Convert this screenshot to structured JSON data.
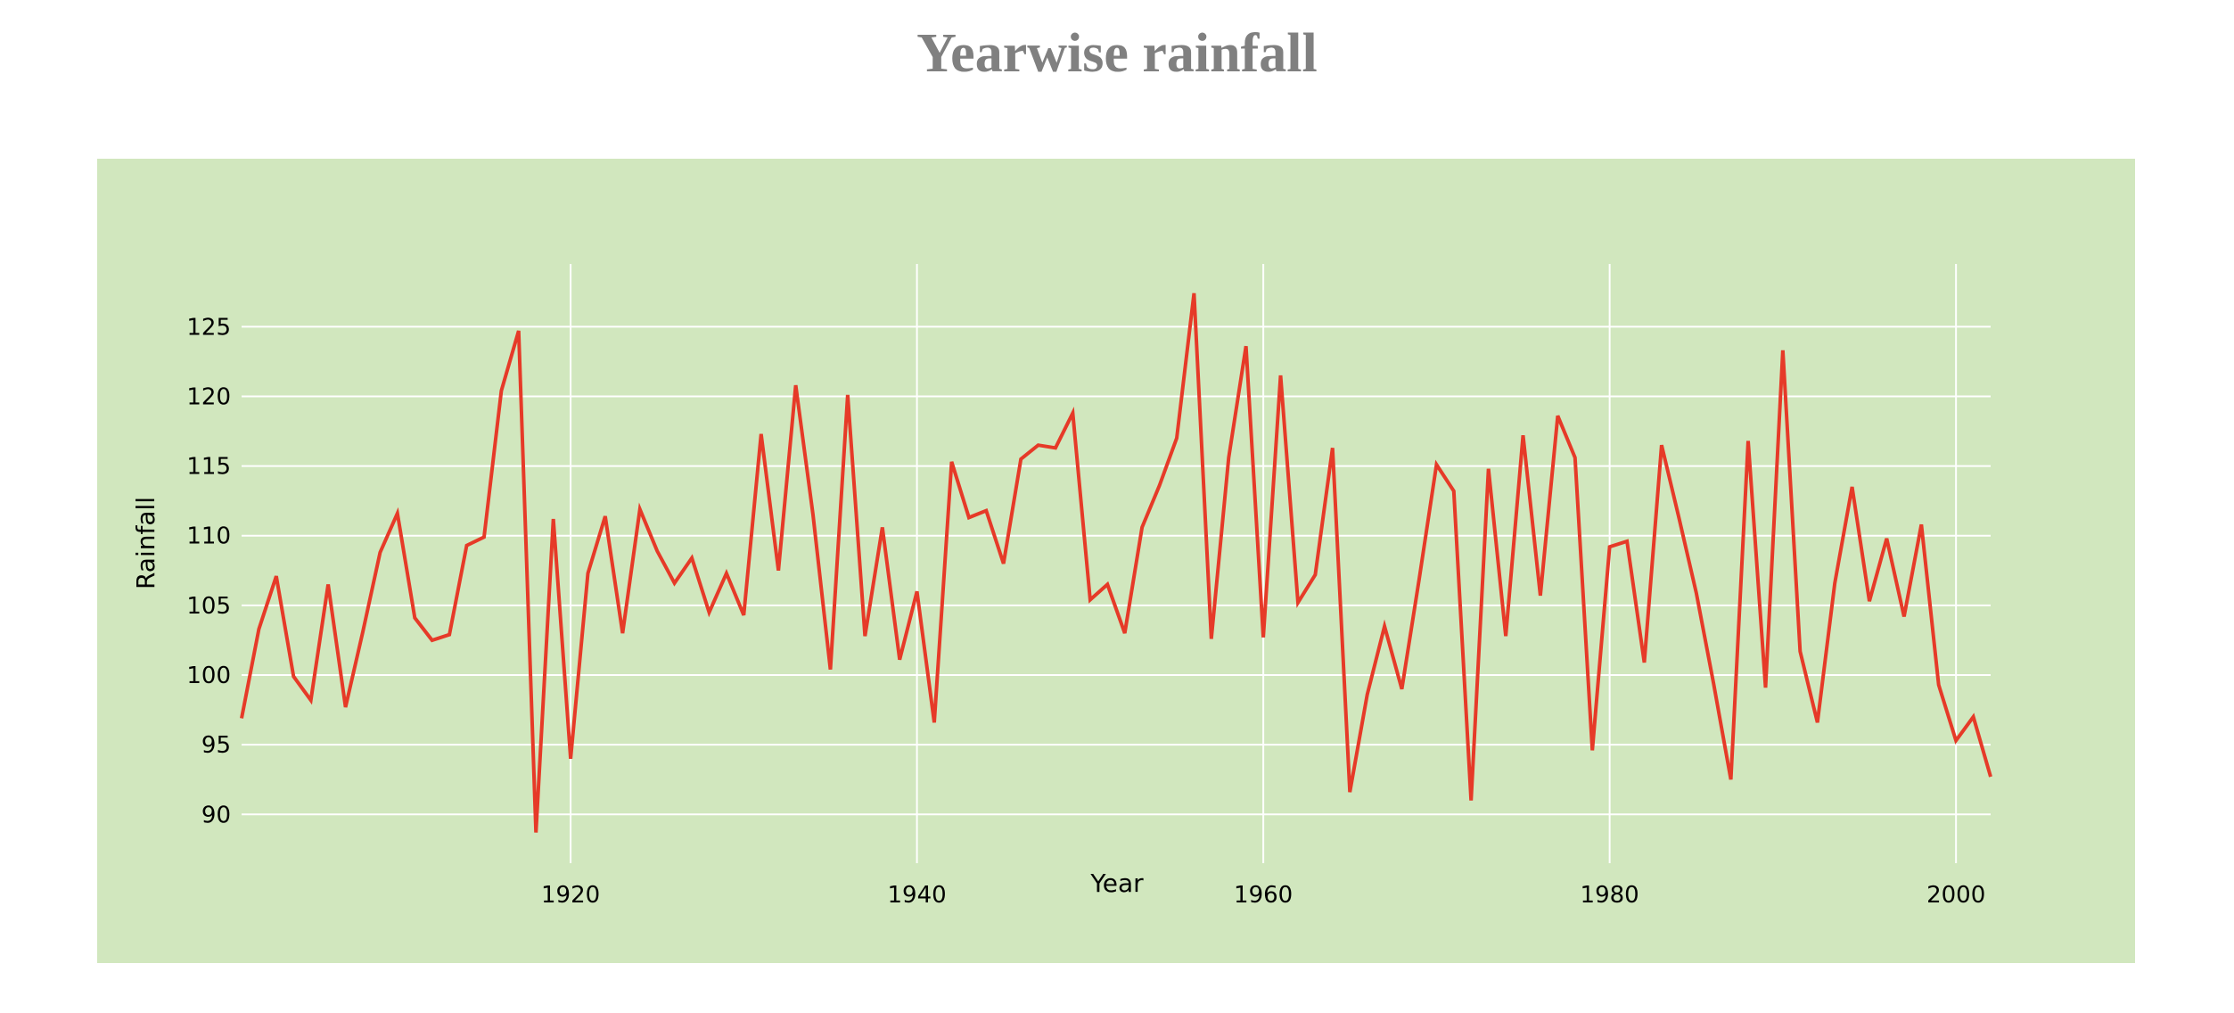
{
  "page": {
    "title": "Yearwise rainfall"
  },
  "colors": {
    "panel_background": "#d1e7be",
    "grid": "#ffffff",
    "line": "#e63a28",
    "title": "#808080",
    "text": "#000000"
  },
  "chart_data": {
    "type": "line",
    "title": "Yearwise rainfall",
    "xlabel": "Year",
    "ylabel": "Rainfall",
    "xlim": [
      1901,
      2002
    ],
    "ylim": [
      86.5,
      129.5
    ],
    "xticks": [
      1920,
      1940,
      1960,
      1980,
      2000
    ],
    "yticks": [
      90,
      95,
      100,
      105,
      110,
      115,
      120,
      125
    ],
    "grid": true,
    "legend": "none",
    "series": [
      {
        "x": [
          1901,
          1902,
          1903,
          1904,
          1905,
          1906,
          1907,
          1908,
          1909,
          1910,
          1911,
          1912,
          1913,
          1914,
          1915,
          1916,
          1917,
          1918,
          1919,
          1920,
          1921,
          1922,
          1923,
          1924,
          1925,
          1926,
          1927,
          1928,
          1929,
          1930,
          1931,
          1932,
          1933,
          1934,
          1935,
          1936,
          1937,
          1938,
          1939,
          1940,
          1941,
          1942,
          1943,
          1944,
          1945,
          1946,
          1947,
          1948,
          1949,
          1950,
          1951,
          1952,
          1953,
          1954,
          1955,
          1956,
          1957,
          1958,
          1959,
          1960,
          1961,
          1962,
          1963,
          1964,
          1965,
          1966,
          1967,
          1968,
          1969,
          1970,
          1971,
          1972,
          1973,
          1974,
          1975,
          1976,
          1977,
          1978,
          1979,
          1980,
          1981,
          1982,
          1983,
          1984,
          1985,
          1986,
          1987,
          1988,
          1989,
          1990,
          1991,
          1992,
          1993,
          1994,
          1995,
          1996,
          1997,
          1998,
          1999,
          2000,
          2001,
          2002
        ],
        "values": [
          96.9,
          103.3,
          107.1,
          99.9,
          98.2,
          106.5,
          97.7,
          103.1,
          108.8,
          111.6,
          104.1,
          102.5,
          102.9,
          109.3,
          109.9,
          120.4,
          124.7,
          88.7,
          111.2,
          94.0,
          107.3,
          111.4,
          103.0,
          111.9,
          108.9,
          106.6,
          108.4,
          104.5,
          107.3,
          104.3,
          117.3,
          107.5,
          120.8,
          111.5,
          100.4,
          120.1,
          102.8,
          110.6,
          101.1,
          106.0,
          96.6,
          115.3,
          111.3,
          111.8,
          108.0,
          115.5,
          116.5,
          116.3,
          118.8,
          105.4,
          106.5,
          103.0,
          110.6,
          113.6,
          117.0,
          127.4,
          102.6,
          115.6,
          123.6,
          102.7,
          121.5,
          105.2,
          107.2,
          116.3,
          91.6,
          98.6,
          103.5,
          99.0,
          106.9,
          115.1,
          113.2,
          91.0,
          114.8,
          102.8,
          117.2,
          105.7,
          118.6,
          115.6,
          94.6,
          109.2,
          109.6,
          100.9,
          116.5,
          111.3,
          105.9,
          99.4,
          92.5,
          116.8,
          99.1,
          123.3,
          101.7,
          96.6,
          106.6,
          113.5,
          105.3,
          109.8,
          104.2,
          110.8,
          99.3,
          95.3,
          97.0,
          92.7
        ]
      }
    ]
  }
}
